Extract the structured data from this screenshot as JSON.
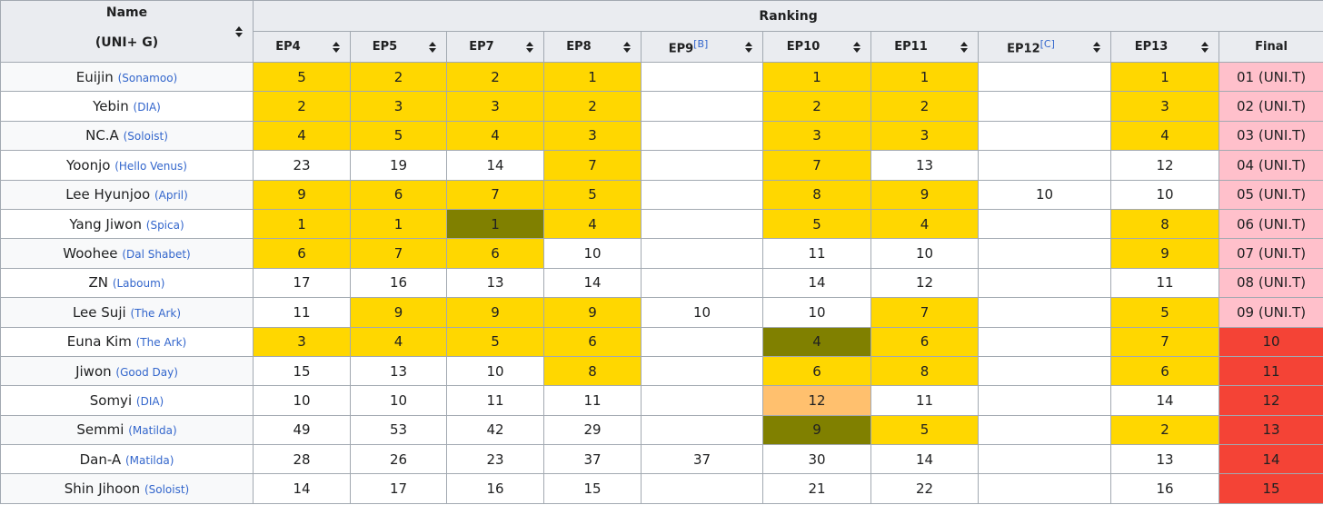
{
  "table": {
    "name_header": [
      "Name",
      "(UNI+ G)"
    ],
    "group_header": "Ranking",
    "columns": [
      {
        "label": "EP4"
      },
      {
        "label": "EP5"
      },
      {
        "label": "EP7"
      },
      {
        "label": "EP8"
      },
      {
        "label": "EP9",
        "note": "[B]"
      },
      {
        "label": "EP10"
      },
      {
        "label": "EP11"
      },
      {
        "label": "EP12",
        "note": "[C]"
      },
      {
        "label": "EP13"
      },
      {
        "label": "Final"
      }
    ],
    "palette": {
      "gold": "#ffd700",
      "olive": "#808000",
      "peach": "#ffc06e",
      "white": "#ffffff",
      "pink": "#ffc0cb",
      "red": "#f44336"
    },
    "rows": [
      {
        "name": "Euijin",
        "group": "(Sonamoo)",
        "values": [
          5,
          2,
          2,
          1,
          null,
          1,
          1,
          null,
          1,
          "01 (UNI.T)"
        ],
        "fills": [
          "gold",
          "gold",
          "gold",
          "gold",
          "white",
          "gold",
          "gold",
          "white",
          "gold",
          "pink"
        ]
      },
      {
        "name": "Yebin",
        "group": "(DIA)",
        "values": [
          2,
          3,
          3,
          2,
          null,
          2,
          2,
          null,
          3,
          "02 (UNI.T)"
        ],
        "fills": [
          "gold",
          "gold",
          "gold",
          "gold",
          "white",
          "gold",
          "gold",
          "white",
          "gold",
          "pink"
        ]
      },
      {
        "name": "NC.A",
        "group": "(Soloist)",
        "values": [
          4,
          5,
          4,
          3,
          null,
          3,
          3,
          null,
          4,
          "03 (UNI.T)"
        ],
        "fills": [
          "gold",
          "gold",
          "gold",
          "gold",
          "white",
          "gold",
          "gold",
          "white",
          "gold",
          "pink"
        ]
      },
      {
        "name": "Yoonjo",
        "group": "(Hello Venus)",
        "values": [
          23,
          19,
          14,
          7,
          null,
          7,
          13,
          null,
          12,
          "04 (UNI.T)"
        ],
        "fills": [
          "white",
          "white",
          "white",
          "gold",
          "white",
          "gold",
          "white",
          "white",
          "white",
          "pink"
        ]
      },
      {
        "name": "Lee Hyunjoo",
        "group": "(April)",
        "values": [
          9,
          6,
          7,
          5,
          null,
          8,
          9,
          10,
          10,
          "05 (UNI.T)"
        ],
        "fills": [
          "gold",
          "gold",
          "gold",
          "gold",
          "white",
          "gold",
          "gold",
          "white",
          "white",
          "pink"
        ]
      },
      {
        "name": "Yang Jiwon",
        "group": "(Spica)",
        "values": [
          1,
          1,
          1,
          4,
          null,
          5,
          4,
          null,
          8,
          "06 (UNI.T)"
        ],
        "fills": [
          "gold",
          "gold",
          "olive",
          "gold",
          "white",
          "gold",
          "gold",
          "white",
          "gold",
          "pink"
        ]
      },
      {
        "name": "Woohee",
        "group": "(Dal Shabet)",
        "values": [
          6,
          7,
          6,
          10,
          null,
          11,
          10,
          null,
          9,
          "07 (UNI.T)"
        ],
        "fills": [
          "gold",
          "gold",
          "gold",
          "white",
          "white",
          "white",
          "white",
          "white",
          "gold",
          "pink"
        ]
      },
      {
        "name": "ZN",
        "group": "(Laboum)",
        "values": [
          17,
          16,
          13,
          14,
          null,
          14,
          12,
          null,
          11,
          "08 (UNI.T)"
        ],
        "fills": [
          "white",
          "white",
          "white",
          "white",
          "white",
          "white",
          "white",
          "white",
          "white",
          "pink"
        ]
      },
      {
        "name": "Lee Suji",
        "group": "(The Ark)",
        "values": [
          11,
          9,
          9,
          9,
          10,
          10,
          7,
          null,
          5,
          "09 (UNI.T)"
        ],
        "fills": [
          "white",
          "gold",
          "gold",
          "gold",
          "white",
          "white",
          "gold",
          "white",
          "gold",
          "pink"
        ]
      },
      {
        "name": "Euna Kim",
        "group": "(The Ark)",
        "values": [
          3,
          4,
          5,
          6,
          null,
          4,
          6,
          null,
          7,
          10
        ],
        "fills": [
          "gold",
          "gold",
          "gold",
          "gold",
          "white",
          "olive",
          "gold",
          "white",
          "gold",
          "red"
        ]
      },
      {
        "name": "Jiwon",
        "group": "(Good Day)",
        "values": [
          15,
          13,
          10,
          8,
          null,
          6,
          8,
          null,
          6,
          11
        ],
        "fills": [
          "white",
          "white",
          "white",
          "gold",
          "white",
          "gold",
          "gold",
          "white",
          "gold",
          "red"
        ]
      },
      {
        "name": "Somyi",
        "group": "(DIA)",
        "values": [
          10,
          10,
          11,
          11,
          null,
          12,
          11,
          null,
          14,
          12
        ],
        "fills": [
          "white",
          "white",
          "white",
          "white",
          "white",
          "peach",
          "white",
          "white",
          "white",
          "red"
        ]
      },
      {
        "name": "Semmi",
        "group": "(Matilda)",
        "values": [
          49,
          53,
          42,
          29,
          null,
          9,
          5,
          null,
          2,
          13
        ],
        "fills": [
          "white",
          "white",
          "white",
          "white",
          "white",
          "olive",
          "gold",
          "white",
          "gold",
          "red"
        ]
      },
      {
        "name": "Dan-A",
        "group": "(Matilda)",
        "values": [
          28,
          26,
          23,
          37,
          37,
          30,
          14,
          null,
          13,
          14
        ],
        "fills": [
          "white",
          "white",
          "white",
          "white",
          "white",
          "white",
          "white",
          "white",
          "white",
          "red"
        ]
      },
      {
        "name": "Shin Jihoon",
        "group": "(Soloist)",
        "values": [
          14,
          17,
          16,
          15,
          null,
          21,
          22,
          null,
          16,
          15
        ],
        "fills": [
          "white",
          "white",
          "white",
          "white",
          "white",
          "white",
          "white",
          "white",
          "white",
          "red"
        ]
      }
    ]
  }
}
